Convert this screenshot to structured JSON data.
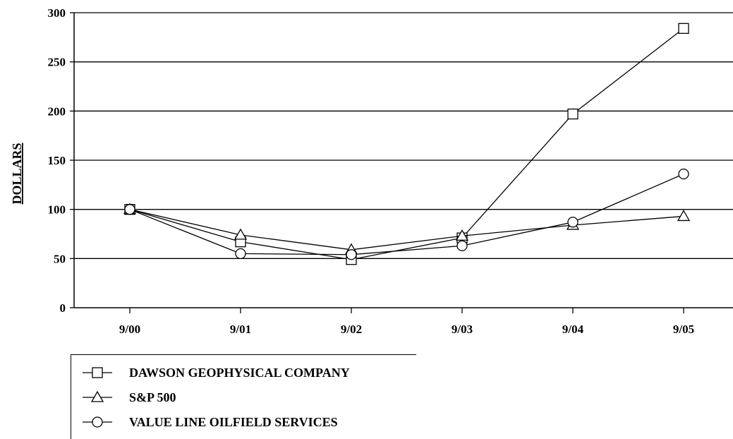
{
  "chart_data": {
    "type": "line",
    "title": "",
    "xlabel": "",
    "ylabel": "DOLLARS",
    "categories": [
      "9/00",
      "9/01",
      "9/02",
      "9/03",
      "9/04",
      "9/05"
    ],
    "ylim": [
      0,
      300
    ],
    "yticks": [
      0,
      50,
      100,
      150,
      200,
      250,
      300
    ],
    "grid": "horizontal",
    "legend_position": "bottom-left",
    "series": [
      {
        "name": "DAWSON GEOPHYSICAL COMPANY",
        "marker": "square",
        "values": [
          100,
          67,
          49,
          71,
          197,
          284
        ]
      },
      {
        "name": "S&P 500",
        "marker": "triangle",
        "values": [
          100,
          74,
          59,
          73,
          84,
          93
        ]
      },
      {
        "name": "VALUE LINE OILFIELD SERVICES",
        "marker": "circle",
        "values": [
          100,
          55,
          54,
          63,
          87,
          136
        ]
      }
    ]
  }
}
